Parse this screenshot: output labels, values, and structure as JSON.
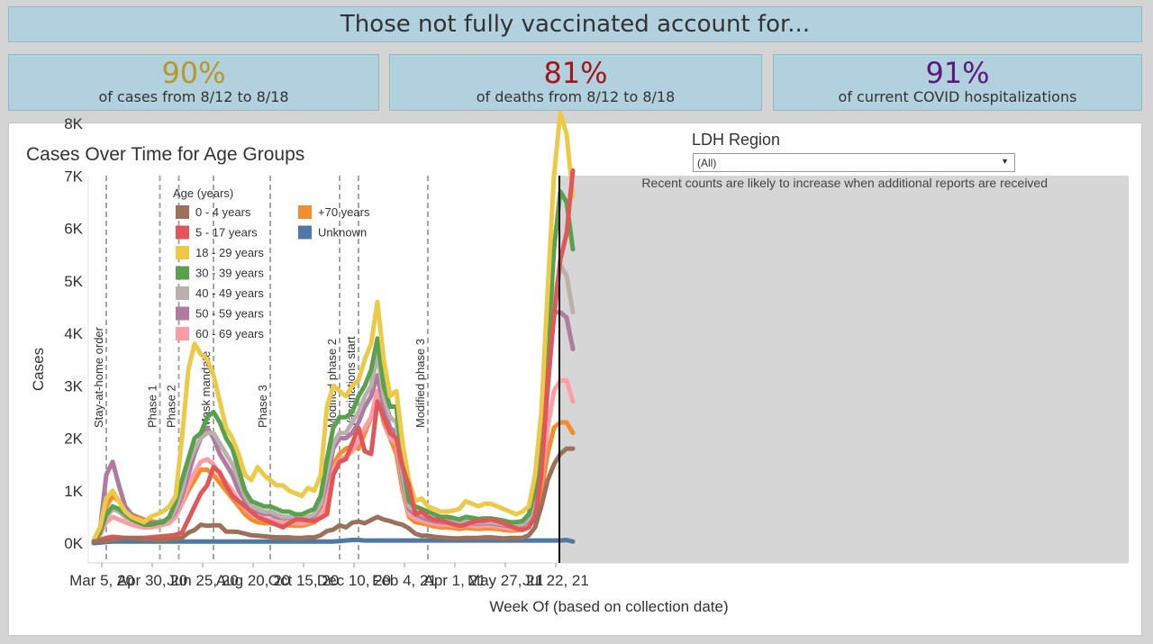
{
  "banner": {
    "title": "Those not fully vaccinated account for..."
  },
  "stats": [
    {
      "value": "90%",
      "label": "of cases from 8/12 to 8/18",
      "color": "#b8972a"
    },
    {
      "value": "81%",
      "label": "of deaths from 8/12 to 8/18",
      "color": "#a3161c"
    },
    {
      "value": "91%",
      "label": "of current COVID hospitalizations",
      "color": "#5a1b7a"
    }
  ],
  "filter": {
    "label": "LDH Region",
    "selected": "(All)"
  },
  "chart_data": {
    "type": "line",
    "title": "Cases Over Time for Age Groups",
    "xlabel": "Week Of (based on collection date)",
    "ylabel": "Cases",
    "x_tick_labels": [
      "Mar 5, 20",
      "Apr 30, 20",
      "Jun 25, 20",
      "Aug 20, 20",
      "Oct 15, 20",
      "Dec 10, 20",
      "Feb 4, 21",
      "Apr 1, 21",
      "May 27, 21",
      "Jul 22, 21"
    ],
    "y_tick_labels": [
      "0K",
      "1K",
      "2K",
      "3K",
      "4K",
      "5K",
      "6K",
      "7K",
      "8K"
    ],
    "ylim": [
      0,
      8000
    ],
    "week_start": "2020-02-27",
    "annotation_note": "Recent counts are likely to increase when additional reports are received",
    "legend": {
      "title": "Age (years)",
      "placement": "top-left"
    },
    "events": [
      {
        "label": "Stay-at-home order",
        "week": 2
      },
      {
        "label": "Phase 1",
        "week": 10.5
      },
      {
        "label": "Phase 2",
        "week": 13.5
      },
      {
        "label": "Mask mandate",
        "week": 19
      },
      {
        "label": "Phase 3",
        "week": 28
      },
      {
        "label": "Modified phase 2",
        "week": 39
      },
      {
        "label": "Vaccinations start",
        "week": 42
      },
      {
        "label": "Modified phase 3",
        "week": 53
      }
    ],
    "cutoff_week": 74,
    "series": [
      {
        "name": "0 - 4 years",
        "color": "#9c7059",
        "values": [
          30,
          40,
          40,
          60,
          80,
          100,
          90,
          80,
          70,
          70,
          60,
          60,
          70,
          80,
          100,
          200,
          250,
          350,
          330,
          340,
          340,
          220,
          220,
          210,
          180,
          150,
          140,
          130,
          120,
          110,
          110,
          110,
          100,
          100,
          110,
          110,
          150,
          230,
          260,
          340,
          300,
          390,
          410,
          380,
          440,
          500,
          450,
          420,
          380,
          350,
          280,
          180,
          140,
          140,
          120,
          110,
          100,
          90,
          90,
          100,
          100,
          100,
          110,
          110,
          100,
          90,
          100,
          100,
          100,
          150,
          300,
          700,
          1200,
          1500,
          1700,
          1800,
          1800
        ]
      },
      {
        "name": "5 - 17 years",
        "color": "#e15759",
        "values": [
          20,
          60,
          100,
          120,
          110,
          100,
          100,
          100,
          100,
          110,
          120,
          130,
          140,
          160,
          200,
          450,
          700,
          950,
          1100,
          1450,
          1350,
          1100,
          900,
          800,
          700,
          600,
          500,
          450,
          400,
          350,
          300,
          380,
          450,
          450,
          430,
          420,
          480,
          550,
          1300,
          1550,
          1600,
          1900,
          2200,
          1750,
          1700,
          2700,
          2400,
          2100,
          2000,
          1450,
          1100,
          550,
          600,
          500,
          450,
          430,
          400,
          360,
          330,
          350,
          400,
          420,
          430,
          450,
          420,
          380,
          330,
          280,
          250,
          300,
          500,
          1300,
          3100,
          4300,
          5400,
          5900,
          7100
        ]
      },
      {
        "name": "18 - 29 years",
        "color": "#edc948",
        "values": [
          50,
          300,
          850,
          1000,
          800,
          600,
          500,
          450,
          400,
          500,
          550,
          600,
          700,
          900,
          2000,
          3300,
          3800,
          3600,
          3500,
          3200,
          2700,
          2200,
          2000,
          1700,
          1300,
          1200,
          1450,
          1300,
          1200,
          1100,
          1100,
          1000,
          950,
          900,
          1050,
          1000,
          1300,
          2600,
          3000,
          2900,
          2800,
          3000,
          3100,
          3500,
          3800,
          4600,
          3500,
          2800,
          2900,
          1900,
          1200,
          800,
          850,
          700,
          650,
          600,
          600,
          620,
          650,
          800,
          750,
          700,
          750,
          750,
          700,
          650,
          600,
          550,
          600,
          700,
          1300,
          2500,
          4800,
          7000,
          8200,
          7800,
          6600
        ]
      },
      {
        "name": "30 - 39 years",
        "color": "#59a14f",
        "values": [
          30,
          200,
          550,
          700,
          650,
          550,
          450,
          400,
          350,
          350,
          380,
          400,
          500,
          800,
          1200,
          1600,
          2000,
          2100,
          2400,
          2500,
          2300,
          2000,
          1800,
          1400,
          1000,
          800,
          750,
          700,
          700,
          650,
          600,
          600,
          550,
          550,
          600,
          650,
          900,
          1600,
          2200,
          2400,
          2400,
          2500,
          2800,
          3000,
          3300,
          3900,
          3000,
          2600,
          2600,
          1500,
          800,
          700,
          650,
          600,
          550,
          500,
          500,
          480,
          450,
          500,
          480,
          460,
          470,
          470,
          450,
          430,
          400,
          400,
          420,
          550,
          1000,
          1900,
          3600,
          5600,
          6700,
          6500,
          5600
        ]
      },
      {
        "name": "40 - 49 years",
        "color": "#bab0ac",
        "values": [
          40,
          200,
          500,
          650,
          600,
          500,
          450,
          400,
          350,
          350,
          380,
          400,
          450,
          650,
          1000,
          1500,
          1800,
          2000,
          2100,
          2100,
          1900,
          1700,
          1500,
          1200,
          900,
          700,
          650,
          600,
          600,
          550,
          500,
          500,
          480,
          480,
          500,
          550,
          750,
          1350,
          1900,
          2100,
          2100,
          2300,
          2500,
          2800,
          3000,
          3600,
          2800,
          2400,
          2300,
          1300,
          700,
          600,
          550,
          500,
          450,
          420,
          420,
          400,
          380,
          420,
          400,
          390,
          400,
          400,
          380,
          360,
          340,
          340,
          360,
          470,
          850,
          1600,
          3100,
          4600,
          5300,
          5100,
          4400
        ]
      },
      {
        "name": "50 - 59 years",
        "color": "#b07aa1",
        "values": [
          50,
          250,
          1300,
          1550,
          1100,
          700,
          550,
          450,
          400,
          380,
          380,
          400,
          450,
          600,
          900,
          1300,
          1700,
          2000,
          2200,
          2000,
          1700,
          1500,
          1300,
          1000,
          800,
          650,
          600,
          550,
          550,
          500,
          480,
          480,
          460,
          460,
          480,
          520,
          700,
          1200,
          1800,
          2000,
          2000,
          2100,
          2300,
          2600,
          2800,
          3200,
          2600,
          2200,
          2100,
          1200,
          650,
          550,
          500,
          450,
          420,
          400,
          400,
          380,
          360,
          390,
          380,
          370,
          380,
          380,
          360,
          340,
          320,
          320,
          340,
          440,
          800,
          1500,
          2900,
          4400,
          4400,
          4300,
          3700
        ]
      },
      {
        "name": "60 - 69 years",
        "color": "#ff9da7",
        "values": [
          30,
          150,
          400,
          500,
          450,
          400,
          350,
          320,
          300,
          300,
          320,
          350,
          380,
          500,
          750,
          1100,
          1350,
          1550,
          1600,
          1500,
          1300,
          1150,
          1000,
          800,
          650,
          550,
          500,
          450,
          450,
          420,
          400,
          400,
          380,
          380,
          400,
          430,
          550,
          950,
          1400,
          1600,
          1650,
          1750,
          1950,
          2200,
          2400,
          2900,
          2400,
          2000,
          1900,
          1100,
          550,
          470,
          430,
          400,
          370,
          350,
          350,
          340,
          320,
          340,
          330,
          320,
          330,
          330,
          320,
          300,
          280,
          280,
          300,
          380,
          650,
          1200,
          2200,
          2900,
          3100,
          3100,
          2700
        ]
      },
      {
        "name": "+70 years",
        "color": "#f28e2b",
        "values": [
          40,
          250,
          700,
          900,
          800,
          650,
          550,
          500,
          450,
          420,
          400,
          420,
          450,
          550,
          750,
          1000,
          1200,
          1400,
          1400,
          1300,
          1150,
          1000,
          850,
          700,
          550,
          450,
          400,
          380,
          380,
          360,
          340,
          340,
          330,
          330,
          360,
          400,
          500,
          800,
          1500,
          1700,
          1800,
          1850,
          1800,
          2100,
          2400,
          2900,
          2300,
          2000,
          1700,
          1000,
          500,
          400,
          380,
          350,
          320,
          300,
          300,
          290,
          270,
          290,
          280,
          270,
          280,
          280,
          270,
          250,
          240,
          240,
          260,
          330,
          550,
          1000,
          1700,
          2200,
          2300,
          2300,
          2100
        ]
      },
      {
        "name": "Unknown",
        "color": "#4e79a7",
        "values": [
          0,
          10,
          20,
          30,
          30,
          30,
          30,
          30,
          30,
          30,
          30,
          30,
          30,
          30,
          30,
          30,
          30,
          30,
          30,
          30,
          30,
          30,
          30,
          30,
          30,
          30,
          30,
          30,
          30,
          30,
          30,
          30,
          30,
          30,
          30,
          30,
          30,
          30,
          30,
          40,
          50,
          60,
          60,
          50,
          50,
          50,
          50,
          50,
          50,
          50,
          50,
          50,
          50,
          50,
          50,
          50,
          50,
          50,
          50,
          50,
          50,
          50,
          50,
          50,
          50,
          50,
          50,
          50,
          50,
          50,
          50,
          50,
          50,
          50,
          50,
          60,
          30
        ]
      }
    ]
  }
}
